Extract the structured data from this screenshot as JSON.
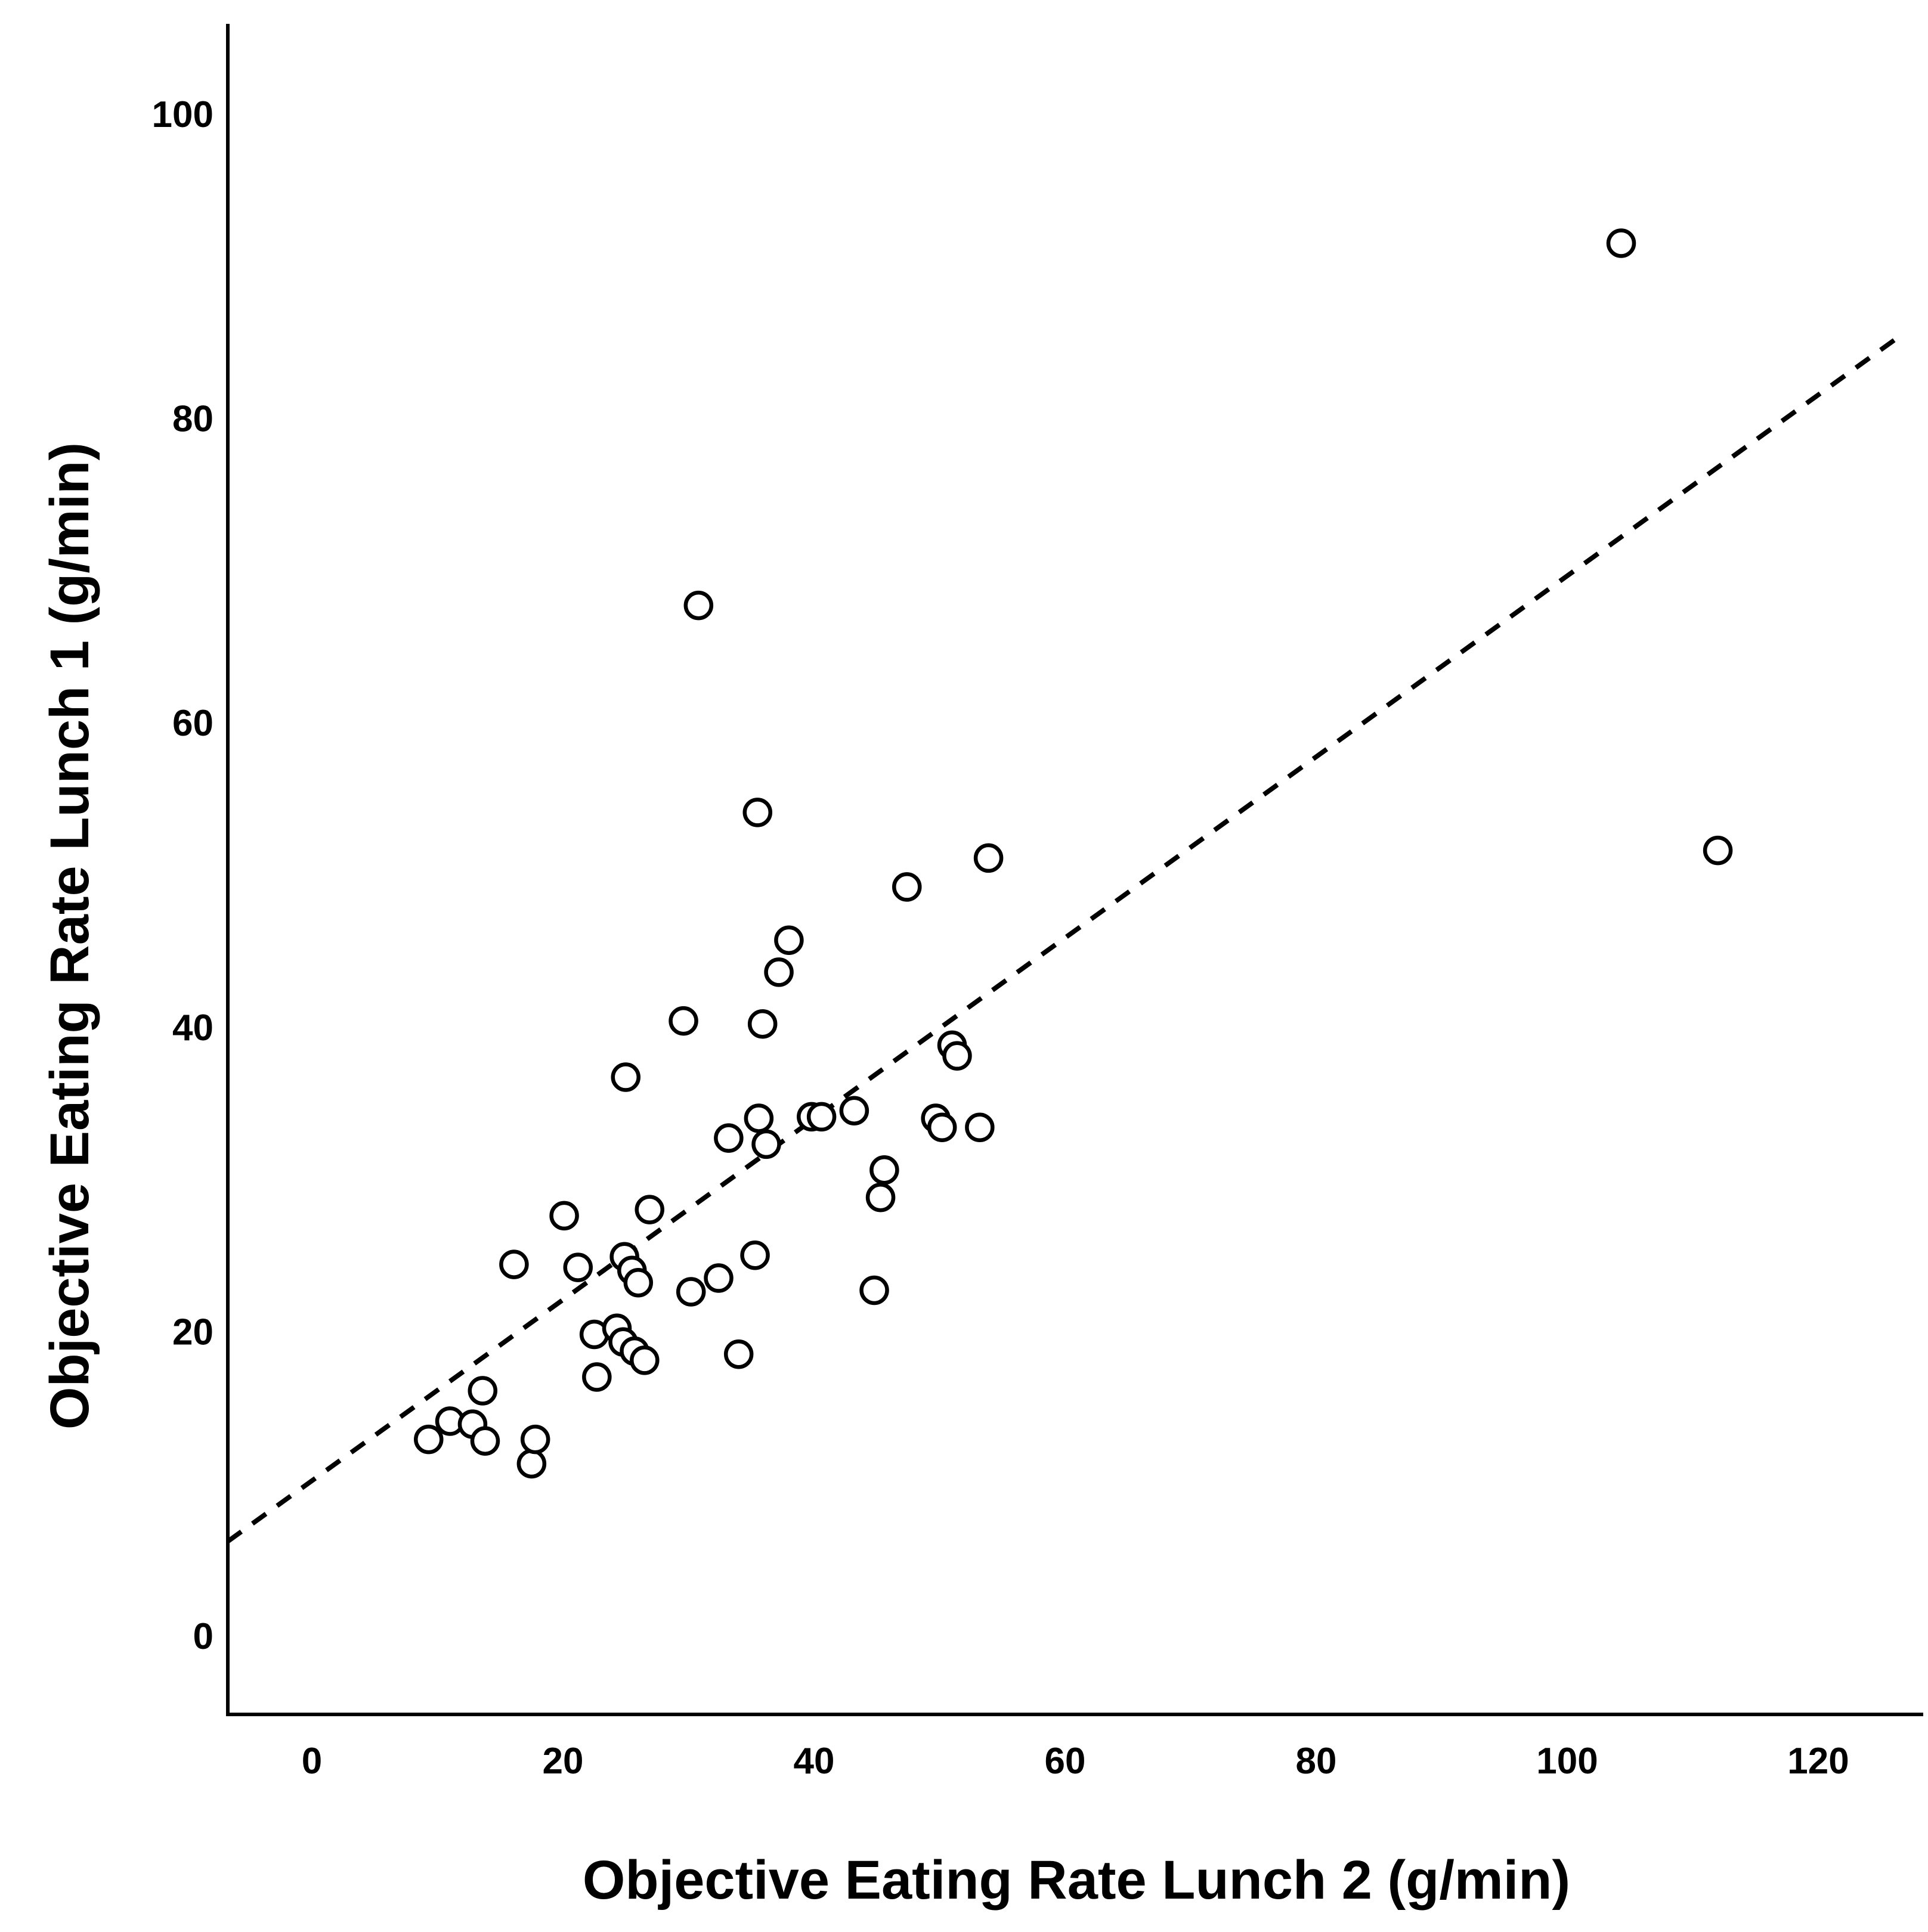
{
  "page": {
    "background_color": "#ffffff",
    "foreground_color": "#000000"
  },
  "chart_data": {
    "type": "scatter",
    "title": "",
    "xlabel": "Objective Eating Rate Lunch 2 (g/min)",
    "ylabel": "Objective Eating Rate Lunch 1 (g/min)",
    "x_ticks": [
      0,
      20,
      40,
      60,
      80,
      100,
      120
    ],
    "y_ticks": [
      0,
      20,
      40,
      60,
      80,
      100
    ],
    "xlim": [
      -6.7,
      128.7
    ],
    "ylim": [
      -5.2,
      105.9
    ],
    "grid": false,
    "legend_position": "none",
    "marker": {
      "shape": "open-circle",
      "stroke_color": "#000000",
      "fill_color": "#ffffff"
    },
    "points": [
      [
        9.3,
        12.9
      ],
      [
        11.0,
        14.1
      ],
      [
        12.8,
        13.9
      ],
      [
        13.6,
        16.1
      ],
      [
        13.8,
        12.8
      ],
      [
        17.5,
        11.3
      ],
      [
        17.8,
        12.9
      ],
      [
        16.1,
        24.4
      ],
      [
        20.1,
        27.6
      ],
      [
        21.2,
        24.2
      ],
      [
        22.5,
        19.8
      ],
      [
        22.7,
        17.0
      ],
      [
        24.3,
        20.2
      ],
      [
        24.8,
        19.3
      ],
      [
        25.7,
        18.7
      ],
      [
        26.5,
        18.1
      ],
      [
        24.9,
        24.9
      ],
      [
        25.5,
        24.0
      ],
      [
        26.0,
        23.2
      ],
      [
        26.9,
        28.0
      ],
      [
        30.2,
        22.6
      ],
      [
        32.4,
        23.5
      ],
      [
        35.3,
        25.0
      ],
      [
        34.0,
        18.5
      ],
      [
        44.8,
        22.7
      ],
      [
        25.0,
        36.7
      ],
      [
        29.6,
        40.4
      ],
      [
        30.8,
        67.7
      ],
      [
        33.2,
        32.7
      ],
      [
        35.5,
        54.1
      ],
      [
        35.6,
        34.0
      ],
      [
        36.2,
        32.3
      ],
      [
        35.9,
        40.2
      ],
      [
        37.2,
        43.6
      ],
      [
        38.0,
        45.7
      ],
      [
        39.8,
        34.1
      ],
      [
        40.6,
        34.1
      ],
      [
        43.2,
        34.5
      ],
      [
        45.6,
        30.6
      ],
      [
        45.3,
        28.8
      ],
      [
        47.4,
        49.2
      ],
      [
        49.7,
        34.0
      ],
      [
        50.2,
        33.4
      ],
      [
        51.0,
        38.8
      ],
      [
        51.4,
        38.1
      ],
      [
        53.2,
        33.4
      ],
      [
        53.9,
        51.1
      ],
      [
        104.3,
        91.5
      ],
      [
        112.0,
        51.6
      ]
    ],
    "trendline": {
      "style": "dashed",
      "color": "#000000",
      "slope": 0.6,
      "intercept": 10.2,
      "x1": -6.7,
      "y1": 6.2,
      "x2": 126.5,
      "y2": 85.4
    }
  }
}
